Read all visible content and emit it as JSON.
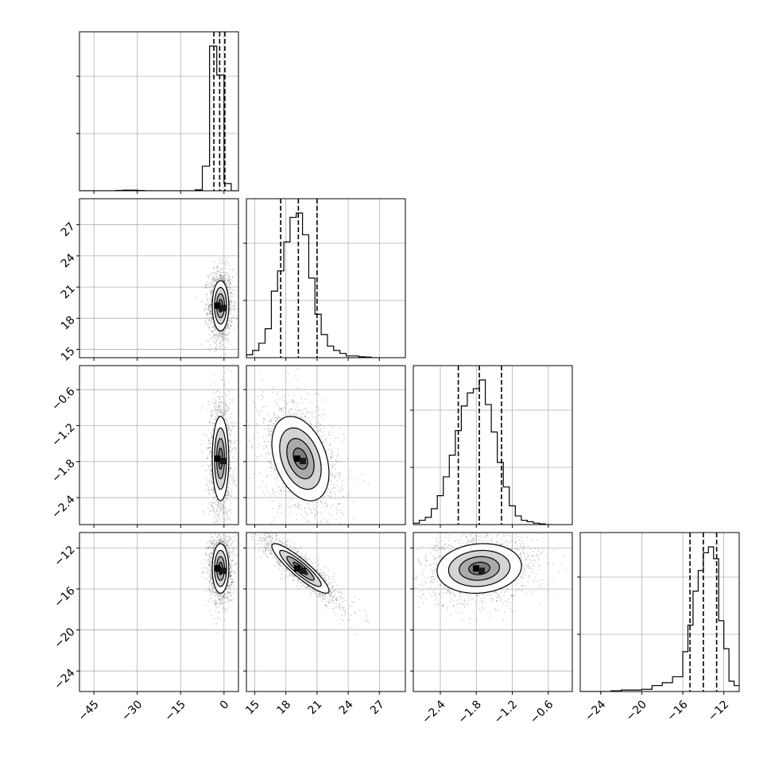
{
  "chart_data": {
    "type": "corner",
    "grid": true,
    "colors": {
      "line": "#000000",
      "grid": "#b0b0b0",
      "points": "#000000",
      "quantile": "#000000"
    },
    "parameters": [
      {
        "range": [
          -50,
          5
        ],
        "ticks": [
          -45,
          -30,
          -15,
          0
        ],
        "tick_labels": [
          "−45",
          "−30",
          "−15",
          "0"
        ]
      },
      {
        "range": [
          14.2,
          29.5
        ],
        "ticks": [
          15,
          18,
          21,
          24,
          27
        ],
        "tick_labels": [
          "15",
          "18",
          "21",
          "24",
          "27"
        ]
      },
      {
        "range": [
          -2.85,
          -0.2
        ],
        "ticks": [
          -2.4,
          -1.8,
          -1.2,
          -0.6
        ],
        "tick_labels": [
          "−2.4",
          "−1.8",
          "−1.2",
          "−0.6"
        ]
      },
      {
        "range": [
          -26.0,
          -10.5
        ],
        "ticks": [
          -24,
          -20,
          -16,
          -12
        ],
        "tick_labels": [
          "−24",
          "−20",
          "−16",
          "−12"
        ]
      }
    ],
    "histograms": [
      {
        "edges": [
          -50,
          -47.5,
          -45,
          -42.5,
          -40,
          -37.5,
          -35,
          -32.5,
          -30,
          -27.5,
          -25,
          -22.5,
          -20,
          -17.5,
          -15,
          -12.5,
          -10,
          -7.5,
          -5,
          -2.5,
          0,
          2.5,
          5
        ],
        "counts": [
          0,
          0,
          0,
          0,
          0,
          0.002,
          0.004,
          0.004,
          0.002,
          0,
          0,
          0,
          0,
          0,
          0,
          0,
          0.006,
          0.17,
          1.0,
          0.8,
          0.05,
          0
        ],
        "quantiles": [
          -3.5,
          -1.5,
          0.3
        ]
      },
      {
        "edges": [
          14.2,
          14.8,
          15.4,
          16.0,
          16.6,
          17.2,
          17.8,
          18.4,
          19.0,
          19.6,
          20.2,
          20.8,
          21.4,
          22.0,
          22.6,
          23.2,
          23.8,
          24.4,
          25.0,
          25.6,
          26.2,
          26.8
        ],
        "counts": [
          0.02,
          0.05,
          0.1,
          0.2,
          0.46,
          0.6,
          0.8,
          0.97,
          1.0,
          0.85,
          0.55,
          0.3,
          0.16,
          0.08,
          0.05,
          0.03,
          0.012,
          0.012,
          0.006,
          0.004,
          0
        ],
        "quantiles": [
          17.5,
          19.2,
          21.0
        ]
      },
      {
        "edges": [
          -2.85,
          -2.75,
          -2.65,
          -2.55,
          -2.45,
          -2.35,
          -2.25,
          -2.15,
          -2.05,
          -1.95,
          -1.85,
          -1.75,
          -1.65,
          -1.55,
          -1.45,
          -1.35,
          -1.25,
          -1.15,
          -1.05,
          -0.95,
          -0.85,
          -0.75,
          -0.65,
          -0.55
        ],
        "counts": [
          0.01,
          0.03,
          0.05,
          0.11,
          0.2,
          0.33,
          0.48,
          0.65,
          0.82,
          0.91,
          0.94,
          1.0,
          0.83,
          0.64,
          0.43,
          0.26,
          0.13,
          0.06,
          0.03,
          0.02,
          0.01,
          0.005,
          0
        ],
        "quantiles": [
          -2.1,
          -1.75,
          -1.38
        ]
      },
      {
        "edges": [
          -26,
          -25,
          -24,
          -23,
          -22,
          -21,
          -20,
          -19,
          -18,
          -17,
          -16,
          -15.5,
          -15,
          -14.5,
          -14,
          -13.5,
          -13,
          -12.5,
          -12,
          -11.5,
          -11,
          -10.5
        ],
        "counts": [
          0,
          0,
          0,
          0.005,
          0.01,
          0.01,
          0.015,
          0.04,
          0.06,
          0.1,
          0.27,
          0.45,
          0.68,
          0.82,
          0.94,
          0.98,
          0.9,
          0.48,
          0.29,
          0.07,
          0.04
        ],
        "quantiles": [
          -15.3,
          -14.0,
          -12.7
        ]
      }
    ],
    "pairs": [
      {
        "row": 1,
        "col": 0,
        "mean": [
          -1.2,
          19.2
        ],
        "sd": [
          1.3,
          1.1
        ],
        "rho": 0.0
      },
      {
        "row": 2,
        "col": 0,
        "mean": [
          -1.2,
          -1.75
        ],
        "sd": [
          1.3,
          0.32
        ],
        "rho": 0.0
      },
      {
        "row": 2,
        "col": 1,
        "mean": [
          19.4,
          -1.75
        ],
        "sd": [
          1.25,
          0.32
        ],
        "rho": -0.35
      },
      {
        "row": 3,
        "col": 0,
        "mean": [
          -1.2,
          -14.0
        ],
        "sd": [
          1.3,
          1.1
        ],
        "rho": 0.0
      },
      {
        "row": 3,
        "col": 1,
        "mean": [
          19.4,
          -14.0
        ],
        "sd": [
          1.25,
          1.1
        ],
        "rho": -0.9
      },
      {
        "row": 3,
        "col": 2,
        "mean": [
          -1.75,
          -14.0
        ],
        "sd": [
          0.32,
          1.1
        ],
        "rho": 0.1
      }
    ]
  }
}
